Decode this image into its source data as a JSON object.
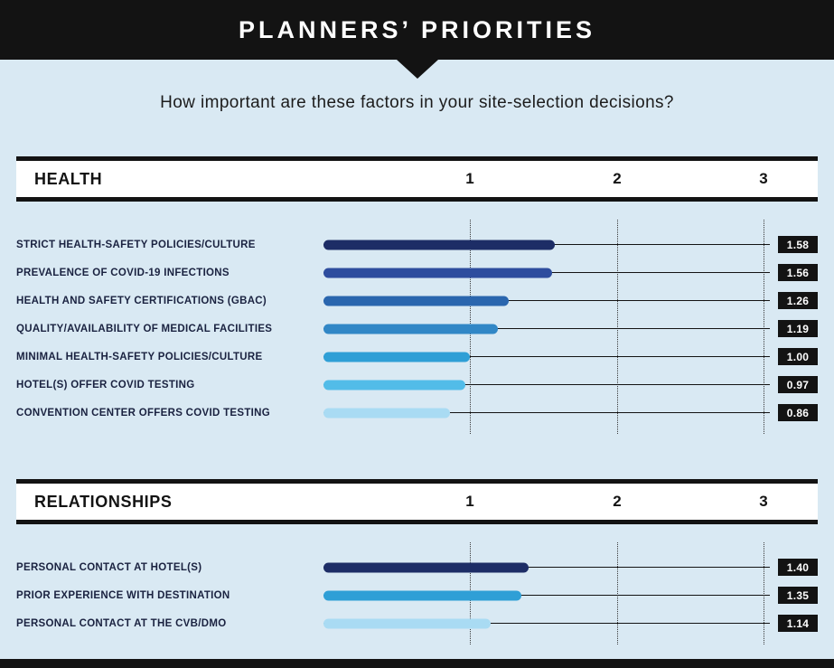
{
  "header": {
    "title": "PLANNERS’ PRIORITIES"
  },
  "subtitle": "How important are these factors in your site-selection decisions?",
  "colors": {
    "background": "#d9e9f3",
    "header_bar": "#131313",
    "badge_bg": "#131313",
    "badge_text": "#ffffff"
  },
  "chart_data": {
    "type": "bar",
    "orientation": "horizontal",
    "title": "PLANNERS’ PRIORITIES",
    "question": "How important are these factors in your site-selection decisions?",
    "xlim": [
      0,
      3
    ],
    "ticks": [
      "1",
      "2",
      "3"
    ],
    "grid": "dotted-vertical",
    "sections": [
      {
        "title": "HEALTH",
        "items": [
          {
            "label": "STRICT HEALTH-SAFETY POLICIES/CULTURE",
            "value": 1.58,
            "display": "1.58",
            "color": "#1d2d66"
          },
          {
            "label": "PREVALENCE OF COVID-19 INFECTIONS",
            "value": 1.56,
            "display": "1.56",
            "color": "#2e4d9e"
          },
          {
            "label": "HEALTH AND SAFETY CERTIFICATIONS (GBAC)",
            "value": 1.26,
            "display": "1.26",
            "color": "#2a66ae"
          },
          {
            "label": "QUALITY/AVAILABILITY OF MEDICAL FACILITIES",
            "value": 1.19,
            "display": "1.19",
            "color": "#3187c6"
          },
          {
            "label": "MINIMAL HEALTH-SAFETY POLICIES/CULTURE",
            "value": 1.0,
            "display": "1.00",
            "color": "#2f9fd6"
          },
          {
            "label": "HOTEL(S) OFFER COVID TESTING",
            "value": 0.97,
            "display": "0.97",
            "color": "#52bce8"
          },
          {
            "label": "CONVENTION CENTER OFFERS COVID TESTING",
            "value": 0.86,
            "display": "0.86",
            "color": "#a9dbf3"
          }
        ]
      },
      {
        "title": "RELATIONSHIPS",
        "items": [
          {
            "label": "PERSONAL CONTACT AT HOTEL(S)",
            "value": 1.4,
            "display": "1.40",
            "color": "#1d2d66"
          },
          {
            "label": "PRIOR EXPERIENCE WITH DESTINATION",
            "value": 1.35,
            "display": "1.35",
            "color": "#2f9fd6"
          },
          {
            "label": "PERSONAL CONTACT AT THE CVB/DMO",
            "value": 1.14,
            "display": "1.14",
            "color": "#a9dbf3"
          }
        ]
      }
    ]
  }
}
